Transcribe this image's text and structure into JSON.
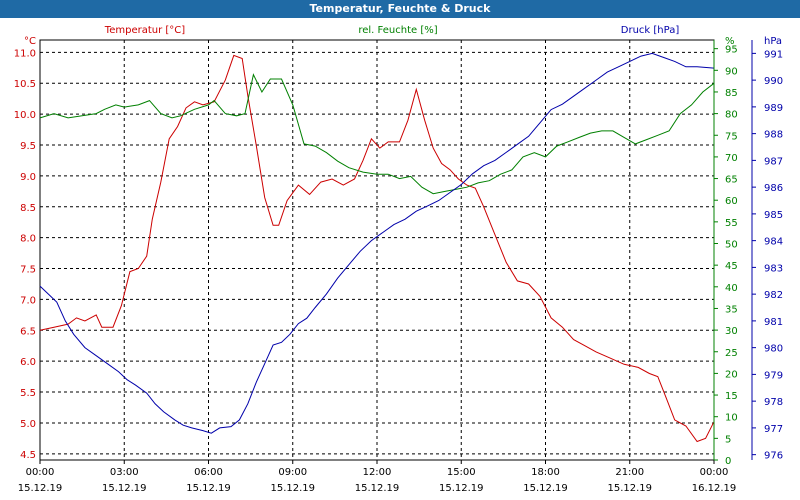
{
  "window": {
    "title": "Temperatur, Feuchte & Druck"
  },
  "chart_data": {
    "type": "line",
    "title": "Temperatur, Feuchte & Druck",
    "colors": {
      "temperature": "#cc0000",
      "humidity": "#008000",
      "pressure": "#0000aa",
      "title_bar": "#1f6aa5"
    },
    "axes": {
      "temperature": {
        "unit": "°C",
        "label": "Temperatur [°C]",
        "min": 4.4,
        "max": 11.2,
        "ticks": [
          "4.5",
          "5.0",
          "5.5",
          "6.0",
          "6.5",
          "7.0",
          "7.5",
          "8.0",
          "8.5",
          "9.0",
          "9.5",
          "10.0",
          "10.5",
          "11.0"
        ]
      },
      "humidity": {
        "unit": "%",
        "label": "rel. Feuchte [%]",
        "min": 0,
        "max": 97,
        "ticks": [
          "0",
          "5",
          "10",
          "15",
          "20",
          "25",
          "30",
          "35",
          "40",
          "45",
          "50",
          "55",
          "60",
          "65",
          "70",
          "75",
          "80",
          "85",
          "90",
          "95"
        ]
      },
      "pressure": {
        "unit": "hPa",
        "label": "Druck [hPa]",
        "min": 975.8,
        "max": 991.5,
        "ticks": [
          "976",
          "977",
          "978",
          "979",
          "980",
          "981",
          "982",
          "983",
          "984",
          "985",
          "986",
          "987",
          "988",
          "989",
          "990",
          "991"
        ]
      }
    },
    "x_ticks": [
      {
        "time": "00:00",
        "date": "15.12.19"
      },
      {
        "time": "03:00",
        "date": "15.12.19"
      },
      {
        "time": "06:00",
        "date": "15.12.19"
      },
      {
        "time": "09:00",
        "date": "15.12.19"
      },
      {
        "time": "12:00",
        "date": "15.12.19"
      },
      {
        "time": "15:00",
        "date": "15.12.19"
      },
      {
        "time": "18:00",
        "date": "15.12.19"
      },
      {
        "time": "21:00",
        "date": "15.12.19"
      },
      {
        "time": "00:00",
        "date": "16.12.19"
      }
    ],
    "x_range_hours": [
      0,
      24
    ],
    "grid": true,
    "series": [
      {
        "name": "Temperatur [°C]",
        "axis": "temperature",
        "points": [
          [
            0,
            6.5
          ],
          [
            0.5,
            6.55
          ],
          [
            1,
            6.6
          ],
          [
            1.3,
            6.7
          ],
          [
            1.6,
            6.65
          ],
          [
            2,
            6.75
          ],
          [
            2.2,
            6.55
          ],
          [
            2.6,
            6.55
          ],
          [
            2.9,
            6.9
          ],
          [
            3.2,
            7.45
          ],
          [
            3.5,
            7.5
          ],
          [
            3.8,
            7.7
          ],
          [
            4,
            8.3
          ],
          [
            4.3,
            8.9
          ],
          [
            4.6,
            9.6
          ],
          [
            4.9,
            9.8
          ],
          [
            5.2,
            10.1
          ],
          [
            5.5,
            10.2
          ],
          [
            5.8,
            10.15
          ],
          [
            6.2,
            10.2
          ],
          [
            6.6,
            10.55
          ],
          [
            6.9,
            10.95
          ],
          [
            7.2,
            10.9
          ],
          [
            7.4,
            10.3
          ],
          [
            7.7,
            9.5
          ],
          [
            8,
            8.65
          ],
          [
            8.3,
            8.2
          ],
          [
            8.5,
            8.2
          ],
          [
            8.8,
            8.6
          ],
          [
            9.2,
            8.85
          ],
          [
            9.6,
            8.7
          ],
          [
            10,
            8.9
          ],
          [
            10.4,
            8.95
          ],
          [
            10.8,
            8.85
          ],
          [
            11.2,
            8.95
          ],
          [
            11.5,
            9.25
          ],
          [
            11.8,
            9.6
          ],
          [
            12.1,
            9.45
          ],
          [
            12.4,
            9.55
          ],
          [
            12.8,
            9.55
          ],
          [
            13.1,
            9.9
          ],
          [
            13.4,
            10.4
          ],
          [
            13.7,
            9.9
          ],
          [
            14,
            9.45
          ],
          [
            14.3,
            9.2
          ],
          [
            14.6,
            9.1
          ],
          [
            14.9,
            8.95
          ],
          [
            15.2,
            8.85
          ],
          [
            15.5,
            8.8
          ],
          [
            15.8,
            8.5
          ],
          [
            16.2,
            8.05
          ],
          [
            16.6,
            7.6
          ],
          [
            17,
            7.3
          ],
          [
            17.4,
            7.25
          ],
          [
            17.8,
            7.05
          ],
          [
            18.2,
            6.7
          ],
          [
            18.6,
            6.55
          ],
          [
            19,
            6.35
          ],
          [
            19.4,
            6.25
          ],
          [
            19.8,
            6.15
          ],
          [
            20.3,
            6.05
          ],
          [
            20.8,
            5.95
          ],
          [
            21.3,
            5.9
          ],
          [
            21.7,
            5.8
          ],
          [
            22,
            5.75
          ],
          [
            22.3,
            5.4
          ],
          [
            22.6,
            5.05
          ],
          [
            23,
            4.95
          ],
          [
            23.4,
            4.7
          ],
          [
            23.7,
            4.75
          ],
          [
            24,
            5.02
          ]
        ]
      },
      {
        "name": "rel. Feuchte [%]",
        "axis": "humidity",
        "points": [
          [
            0,
            79
          ],
          [
            0.5,
            80
          ],
          [
            1,
            79
          ],
          [
            1.5,
            79.5
          ],
          [
            2,
            80
          ],
          [
            2.3,
            81
          ],
          [
            2.7,
            82
          ],
          [
            3,
            81.5
          ],
          [
            3.5,
            82
          ],
          [
            3.9,
            83
          ],
          [
            4.3,
            80
          ],
          [
            4.7,
            79
          ],
          [
            5,
            79.5
          ],
          [
            5.5,
            81
          ],
          [
            6,
            82
          ],
          [
            6.2,
            83
          ],
          [
            6.6,
            80
          ],
          [
            7,
            79.5
          ],
          [
            7.3,
            80
          ],
          [
            7.6,
            89
          ],
          [
            7.9,
            85
          ],
          [
            8.2,
            88
          ],
          [
            8.6,
            88
          ],
          [
            9,
            82
          ],
          [
            9.4,
            73
          ],
          [
            9.8,
            72.5
          ],
          [
            10.2,
            71
          ],
          [
            10.6,
            69
          ],
          [
            11,
            67.5
          ],
          [
            11.5,
            66.5
          ],
          [
            12,
            66
          ],
          [
            12.4,
            66
          ],
          [
            12.8,
            65
          ],
          [
            13.2,
            65.5
          ],
          [
            13.6,
            63
          ],
          [
            14,
            61.5
          ],
          [
            14.4,
            62
          ],
          [
            14.8,
            62.5
          ],
          [
            15.2,
            63
          ],
          [
            15.6,
            64
          ],
          [
            16,
            64.5
          ],
          [
            16.4,
            66
          ],
          [
            16.8,
            67
          ],
          [
            17.2,
            70
          ],
          [
            17.6,
            71
          ],
          [
            18,
            70
          ],
          [
            18.4,
            72.5
          ],
          [
            18.8,
            73.5
          ],
          [
            19.2,
            74.5
          ],
          [
            19.6,
            75.5
          ],
          [
            20,
            76
          ],
          [
            20.4,
            76
          ],
          [
            20.8,
            74.5
          ],
          [
            21.2,
            73
          ],
          [
            21.6,
            74
          ],
          [
            22,
            75
          ],
          [
            22.4,
            76
          ],
          [
            22.8,
            80
          ],
          [
            23.2,
            82
          ],
          [
            23.6,
            85
          ],
          [
            24,
            87
          ]
        ]
      },
      {
        "name": "Druck [hPa]",
        "axis": "pressure",
        "points": [
          [
            0,
            982.3
          ],
          [
            0.3,
            982
          ],
          [
            0.6,
            981.7
          ],
          [
            0.9,
            981
          ],
          [
            1.2,
            980.5
          ],
          [
            1.6,
            980
          ],
          [
            2,
            979.7
          ],
          [
            2.4,
            979.4
          ],
          [
            2.8,
            979.1
          ],
          [
            3.1,
            978.8
          ],
          [
            3.4,
            978.6
          ],
          [
            3.8,
            978.3
          ],
          [
            4.1,
            977.9
          ],
          [
            4.4,
            977.6
          ],
          [
            4.8,
            977.3
          ],
          [
            5.1,
            977.1
          ],
          [
            5.4,
            977
          ],
          [
            5.8,
            976.9
          ],
          [
            6.1,
            976.8
          ],
          [
            6.4,
            977
          ],
          [
            6.8,
            977.05
          ],
          [
            7.1,
            977.3
          ],
          [
            7.4,
            977.9
          ],
          [
            7.7,
            978.7
          ],
          [
            8,
            979.4
          ],
          [
            8.3,
            980.1
          ],
          [
            8.6,
            980.2
          ],
          [
            8.9,
            980.5
          ],
          [
            9.2,
            980.9
          ],
          [
            9.5,
            981.1
          ],
          [
            9.8,
            981.5
          ],
          [
            10.2,
            982
          ],
          [
            10.6,
            982.6
          ],
          [
            11,
            983.1
          ],
          [
            11.4,
            983.6
          ],
          [
            11.8,
            984
          ],
          [
            12.2,
            984.3
          ],
          [
            12.6,
            984.6
          ],
          [
            13,
            984.8
          ],
          [
            13.4,
            985.1
          ],
          [
            13.8,
            985.3
          ],
          [
            14.2,
            985.5
          ],
          [
            14.6,
            985.8
          ],
          [
            15,
            986.1
          ],
          [
            15.4,
            986.5
          ],
          [
            15.8,
            986.8
          ],
          [
            16.2,
            987
          ],
          [
            16.6,
            987.3
          ],
          [
            17,
            987.6
          ],
          [
            17.4,
            987.9
          ],
          [
            17.8,
            988.4
          ],
          [
            18.2,
            988.9
          ],
          [
            18.6,
            989.1
          ],
          [
            19,
            989.4
          ],
          [
            19.4,
            989.7
          ],
          [
            19.8,
            990
          ],
          [
            20.2,
            990.3
          ],
          [
            20.6,
            990.5
          ],
          [
            21,
            990.7
          ],
          [
            21.4,
            990.9
          ],
          [
            21.8,
            991
          ],
          [
            22.2,
            990.85
          ],
          [
            22.6,
            990.7
          ],
          [
            23,
            990.5
          ],
          [
            23.4,
            990.5
          ],
          [
            24,
            990.45
          ]
        ]
      }
    ]
  }
}
